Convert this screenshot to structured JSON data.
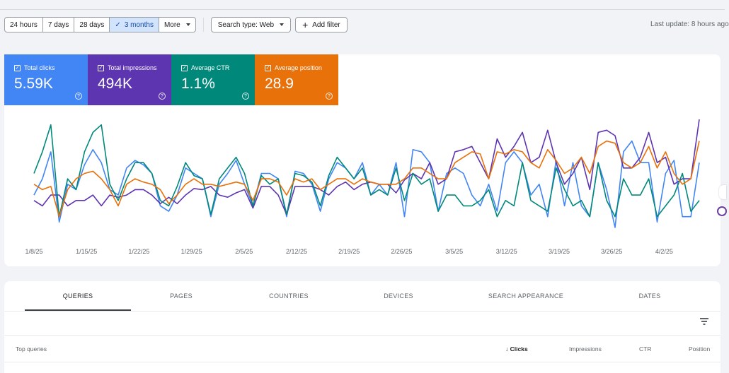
{
  "filters": {
    "ranges": [
      {
        "label": "24 hours",
        "active": false
      },
      {
        "label": "7 days",
        "active": false
      },
      {
        "label": "28 days",
        "active": false
      },
      {
        "label": "3 months",
        "active": true
      },
      {
        "label": "More",
        "active": false
      }
    ],
    "search_type": "Search type: Web",
    "add_filter": "Add filter",
    "last_update": "Last update: 8 hours ago"
  },
  "metrics": [
    {
      "label": "Total clicks",
      "value": "5.59K",
      "color": "#4285f4"
    },
    {
      "label": "Total impressions",
      "value": "494K",
      "color": "#5e35b1"
    },
    {
      "label": "Average CTR",
      "value": "1.1%",
      "color": "#00897b"
    },
    {
      "label": "Average position",
      "value": "28.9",
      "color": "#e8710a"
    }
  ],
  "chart_data": {
    "type": "line",
    "x_ticks": [
      "1/8/25",
      "1/15/25",
      "1/22/25",
      "1/29/25",
      "2/5/25",
      "2/12/25",
      "2/19/25",
      "2/26/25",
      "3/5/25",
      "3/12/25",
      "3/19/25",
      "3/26/25",
      "4/2/25"
    ],
    "series": [
      {
        "name": "Total clicks",
        "color": "#4285f4",
        "values": [
          0.3,
          0.45,
          0.7,
          0.05,
          0.4,
          0.35,
          0.58,
          0.72,
          0.6,
          0.35,
          0.3,
          0.55,
          0.62,
          0.58,
          0.5,
          0.2,
          0.15,
          0.3,
          0.55,
          0.5,
          0.45,
          0.1,
          0.4,
          0.5,
          0.62,
          0.4,
          0.2,
          0.5,
          0.5,
          0.45,
          0.1,
          0.52,
          0.5,
          0.4,
          0.15,
          0.45,
          0.6,
          0.55,
          0.45,
          0.6,
          0.3,
          0.4,
          0.3,
          0.6,
          0.1,
          0.72,
          0.7,
          0.6,
          0.15,
          0.5,
          0.55,
          0.5,
          0.3,
          0.2,
          0.4,
          0.15,
          0.6,
          0.7,
          0.6,
          0.3,
          0.4,
          0.1,
          0.62,
          0.2,
          0.6,
          0.2,
          0.1,
          0.6,
          0.35,
          0.0,
          0.7,
          0.8,
          0.6,
          0.6,
          0.05,
          0.5,
          0.62,
          0.1,
          0.1,
          0.6
        ]
      },
      {
        "name": "Total impressions",
        "color": "#5e35b1",
        "values": [
          0.25,
          0.2,
          0.3,
          0.3,
          0.2,
          0.25,
          0.25,
          0.3,
          0.2,
          0.3,
          0.28,
          0.3,
          0.35,
          0.35,
          0.3,
          0.22,
          0.28,
          0.22,
          0.3,
          0.36,
          0.35,
          0.38,
          0.3,
          0.28,
          0.32,
          0.35,
          0.18,
          0.38,
          0.38,
          0.3,
          0.12,
          0.38,
          0.38,
          0.38,
          0.35,
          0.3,
          0.38,
          0.42,
          0.35,
          0.4,
          0.42,
          0.4,
          0.4,
          0.32,
          0.44,
          0.5,
          0.45,
          0.6,
          0.4,
          0.45,
          0.7,
          0.72,
          0.75,
          0.6,
          0.45,
          0.82,
          0.65,
          0.75,
          0.88,
          0.6,
          0.65,
          0.9,
          0.6,
          0.4,
          0.5,
          0.65,
          0.35,
          0.88,
          0.9,
          0.85,
          0.55,
          0.55,
          0.65,
          0.88,
          0.6,
          0.65,
          0.4,
          0.45,
          0.45,
          1.0
        ]
      },
      {
        "name": "Average CTR",
        "color": "#00897b",
        "values": [
          0.5,
          0.7,
          0.95,
          0.1,
          0.45,
          0.35,
          0.7,
          0.88,
          0.95,
          0.4,
          0.25,
          0.45,
          0.6,
          0.6,
          0.5,
          0.25,
          0.2,
          0.38,
          0.6,
          0.48,
          0.45,
          0.12,
          0.45,
          0.55,
          0.65,
          0.5,
          0.2,
          0.48,
          0.4,
          0.45,
          0.12,
          0.5,
          0.48,
          0.42,
          0.2,
          0.48,
          0.65,
          0.55,
          0.45,
          0.55,
          0.3,
          0.35,
          0.3,
          0.55,
          0.25,
          0.5,
          0.4,
          0.45,
          0.15,
          0.3,
          0.3,
          0.2,
          0.2,
          0.25,
          0.35,
          0.1,
          0.25,
          0.2,
          0.6,
          0.25,
          0.2,
          0.15,
          0.55,
          0.35,
          0.2,
          0.25,
          0.1,
          0.6,
          0.25,
          0.1,
          0.45,
          0.3,
          0.3,
          0.45,
          0.1,
          0.2,
          0.3,
          0.5,
          0.15,
          0.25
        ]
      },
      {
        "name": "Average position",
        "color": "#e8710a",
        "values": [
          0.4,
          0.35,
          0.38,
          0.1,
          0.35,
          0.45,
          0.5,
          0.52,
          0.45,
          0.35,
          0.2,
          0.4,
          0.45,
          0.42,
          0.4,
          0.35,
          0.22,
          0.3,
          0.4,
          0.45,
          0.4,
          0.4,
          0.38,
          0.4,
          0.42,
          0.4,
          0.25,
          0.45,
          0.45,
          0.42,
          0.3,
          0.45,
          0.42,
          0.45,
          0.35,
          0.4,
          0.45,
          0.45,
          0.4,
          0.45,
          0.42,
          0.4,
          0.4,
          0.4,
          0.45,
          0.55,
          0.55,
          0.5,
          0.45,
          0.45,
          0.6,
          0.65,
          0.7,
          0.68,
          0.45,
          0.7,
          0.68,
          0.72,
          0.7,
          0.6,
          0.55,
          0.72,
          0.62,
          0.5,
          0.55,
          0.65,
          0.5,
          0.75,
          0.8,
          0.78,
          0.6,
          0.55,
          0.6,
          0.75,
          0.55,
          0.7,
          0.5,
          0.4,
          0.45,
          0.8
        ]
      }
    ],
    "grid": false,
    "legend": "metric-cards-top-left"
  },
  "table": {
    "tabs": [
      {
        "label": "QUERIES",
        "active": true
      },
      {
        "label": "PAGES",
        "active": false
      },
      {
        "label": "COUNTRIES",
        "active": false
      },
      {
        "label": "DEVICES",
        "active": false
      },
      {
        "label": "SEARCH APPEARANCE",
        "active": false
      },
      {
        "label": "DATES",
        "active": false
      }
    ],
    "columns": {
      "top_queries": "Top queries",
      "clicks": "Clicks",
      "impressions": "Impressions",
      "ctr": "CTR",
      "position": "Position"
    },
    "sort_icon": "arrow-down-icon",
    "filter_icon": "filter-list-icon"
  }
}
